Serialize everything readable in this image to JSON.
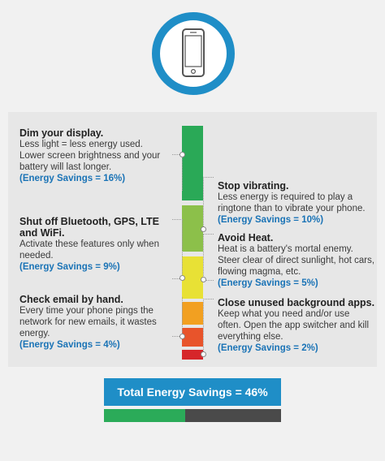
{
  "icon": {
    "name": "smartphone-icon",
    "ring_color": "#1f8ec7"
  },
  "tips": [
    {
      "id": "display",
      "title": "Dim your display.",
      "body": "Less light = less energy used. Lower screen brightness and your battery will last longer.",
      "savings": "(Energy Savings = 16%)",
      "value": 16
    },
    {
      "id": "vibrate",
      "title": "Stop vibrating.",
      "body": "Less energy is required to play a ringtone than to vibrate your phone.",
      "savings": "(Energy Savings = 10%)",
      "value": 10
    },
    {
      "id": "bluetooth",
      "title": "Shut off Bluetooth, GPS, LTE and WiFi.",
      "body": "Activate these features only when needed.",
      "savings": "(Energy Savings = 9%)",
      "value": 9
    },
    {
      "id": "heat",
      "title": "Avoid Heat.",
      "body": "Heat is a battery's mortal enemy. Steer clear of direct sunlight, hot cars, flowing magma, etc.",
      "savings": "(Energy Savings = 5%)",
      "value": 5
    },
    {
      "id": "email",
      "title": "Check email by hand.",
      "body": "Every time your phone pings the network for new emails, it wastes energy.",
      "savings": "(Energy Savings = 4%)",
      "value": 4
    },
    {
      "id": "apps",
      "title": "Close unused background apps.",
      "body": "Keep what you need and/or use often. Open the app switcher and kill everything else.",
      "savings": "(Energy Savings = 2%)",
      "value": 2
    }
  ],
  "bar_colors": [
    "#2aa957",
    "#8cc04a",
    "#e8e135",
    "#f2a021",
    "#e8542b",
    "#d6262a"
  ],
  "total": {
    "label": "Total Energy Savings = 46%",
    "value": 46,
    "color": "#1f8ec7",
    "fill_color": "#2bab59"
  }
}
